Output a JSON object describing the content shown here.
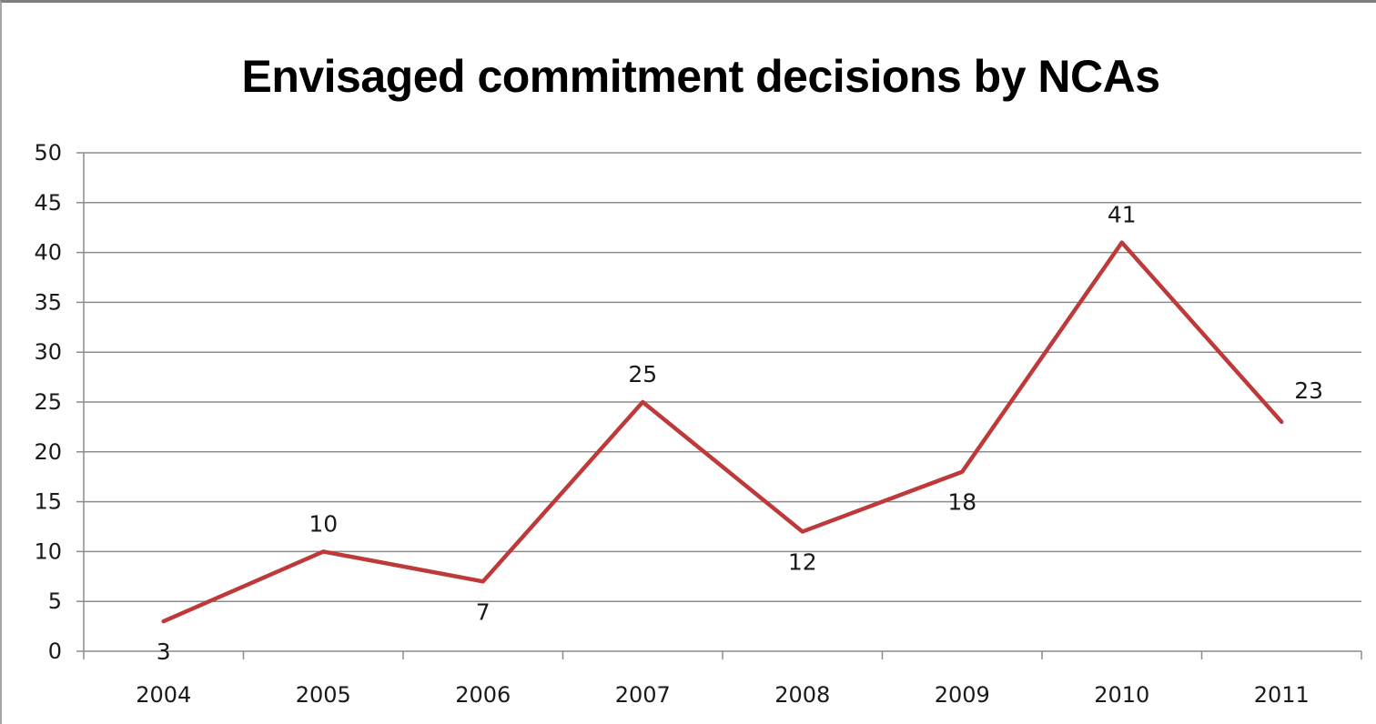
{
  "chart_data": {
    "type": "line",
    "title": "Envisaged commitment decisions by NCAs",
    "xlabel": "",
    "ylabel": "",
    "categories": [
      "2004",
      "2005",
      "2006",
      "2007",
      "2008",
      "2009",
      "2010",
      "2011"
    ],
    "series": [
      {
        "values": [
          3,
          10,
          7,
          25,
          12,
          18,
          41,
          23
        ],
        "color": "#be3a3a"
      }
    ],
    "ylim": [
      0,
      50
    ],
    "yticks": [
      0,
      5,
      10,
      15,
      20,
      25,
      30,
      35,
      40,
      45,
      50
    ],
    "grid": true,
    "legend": "none",
    "data_labels": true,
    "label_placement": [
      "below",
      "above",
      "below",
      "above",
      "below",
      "below",
      "above",
      "right"
    ]
  }
}
